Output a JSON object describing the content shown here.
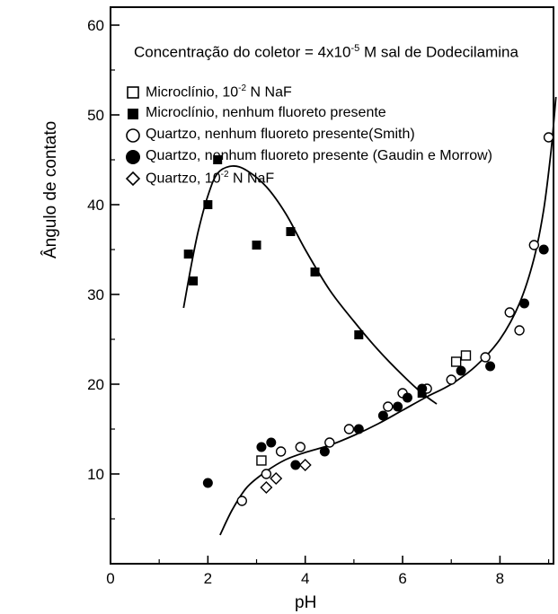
{
  "chart_data": {
    "type": "scatter",
    "xlabel": "pH",
    "ylabel": "Ângulo de contato",
    "xlim": [
      0,
      9.1
    ],
    "ylim": [
      0,
      62
    ],
    "xticks": [
      "0",
      "2",
      "4",
      "6",
      "8"
    ],
    "yticks": [
      "10",
      "20",
      "30",
      "40",
      "50",
      "60"
    ],
    "grid": false,
    "legend_position": "top",
    "legend_title": "Concentração do coletor = 4x10",
    "legend_title_exp": "-5",
    "legend_title_tail": " M sal de Dodecilamina",
    "series": [
      {
        "name_main": "Microclínio, 10",
        "name_exp": "-2",
        "name_tail": " N NaF",
        "marker": "square-open",
        "points": [
          [
            3.1,
            11.5
          ],
          [
            7.1,
            22.5
          ],
          [
            7.3,
            23.2
          ]
        ]
      },
      {
        "name_main": "Microclínio, nenhum fluoreto presente",
        "name_exp": "",
        "name_tail": "",
        "marker": "square-filled",
        "points": [
          [
            1.6,
            34.5
          ],
          [
            1.7,
            31.5
          ],
          [
            2.0,
            40.0
          ],
          [
            2.2,
            45.0
          ],
          [
            3.0,
            35.5
          ],
          [
            3.7,
            37.0
          ],
          [
            4.2,
            32.5
          ],
          [
            5.1,
            25.5
          ],
          [
            6.4,
            19.0
          ]
        ]
      },
      {
        "name_main": "Quartzo, nenhum fluoreto presente(Smith)",
        "name_exp": "",
        "name_tail": "",
        "marker": "circle-open",
        "points": [
          [
            2.7,
            7.0
          ],
          [
            3.2,
            10.0
          ],
          [
            3.5,
            12.5
          ],
          [
            3.9,
            13.0
          ],
          [
            4.5,
            13.5
          ],
          [
            4.9,
            15.0
          ],
          [
            5.7,
            17.5
          ],
          [
            6.0,
            19.0
          ],
          [
            6.5,
            19.5
          ],
          [
            7.0,
            20.5
          ],
          [
            7.7,
            23.0
          ],
          [
            8.2,
            28.0
          ],
          [
            8.4,
            26.0
          ],
          [
            8.7,
            35.5
          ],
          [
            9.0,
            47.5
          ]
        ]
      },
      {
        "name_main": "Quartzo, nenhum fluoreto presente (Gaudin e Morrow)",
        "name_exp": "",
        "name_tail": "",
        "marker": "circle-filled",
        "points": [
          [
            2.0,
            9.0
          ],
          [
            3.1,
            13.0
          ],
          [
            3.3,
            13.5
          ],
          [
            3.8,
            11.0
          ],
          [
            4.4,
            12.5
          ],
          [
            5.1,
            15.0
          ],
          [
            5.6,
            16.5
          ],
          [
            5.9,
            17.5
          ],
          [
            6.1,
            18.5
          ],
          [
            6.4,
            19.5
          ],
          [
            7.2,
            21.5
          ],
          [
            7.8,
            22.0
          ],
          [
            8.5,
            29.0
          ],
          [
            8.9,
            35.0
          ]
        ]
      },
      {
        "name_main": "Quartzo, 10",
        "name_exp": "-2",
        "name_tail": " N NaF",
        "marker": "diamond-open",
        "points": [
          [
            3.2,
            8.5
          ],
          [
            3.4,
            9.5
          ],
          [
            4.0,
            11.0
          ]
        ]
      }
    ],
    "curves": [
      {
        "name": "microclínio",
        "points": [
          [
            1.5,
            28.5
          ],
          [
            1.65,
            33.0
          ],
          [
            1.8,
            37.0
          ],
          [
            2.0,
            41.0
          ],
          [
            2.2,
            43.5
          ],
          [
            2.5,
            44.3
          ],
          [
            2.8,
            43.8
          ],
          [
            3.2,
            42.0
          ],
          [
            3.6,
            39.0
          ],
          [
            4.0,
            35.0
          ],
          [
            4.5,
            30.5
          ],
          [
            5.0,
            27.0
          ],
          [
            5.5,
            23.8
          ],
          [
            6.0,
            21.0
          ],
          [
            6.4,
            19.0
          ],
          [
            6.7,
            17.8
          ]
        ]
      },
      {
        "name": "quartzo",
        "points": [
          [
            2.25,
            3.2
          ],
          [
            2.5,
            6.0
          ],
          [
            2.8,
            8.5
          ],
          [
            3.2,
            10.3
          ],
          [
            3.6,
            11.6
          ],
          [
            4.0,
            12.4
          ],
          [
            4.5,
            13.2
          ],
          [
            5.0,
            14.3
          ],
          [
            5.5,
            15.6
          ],
          [
            6.0,
            17.1
          ],
          [
            6.5,
            18.6
          ],
          [
            7.0,
            20.0
          ],
          [
            7.5,
            22.0
          ],
          [
            8.0,
            25.0
          ],
          [
            8.4,
            29.0
          ],
          [
            8.7,
            34.0
          ],
          [
            8.9,
            39.5
          ],
          [
            9.05,
            46.0
          ],
          [
            9.15,
            52.0
          ]
        ]
      }
    ]
  }
}
